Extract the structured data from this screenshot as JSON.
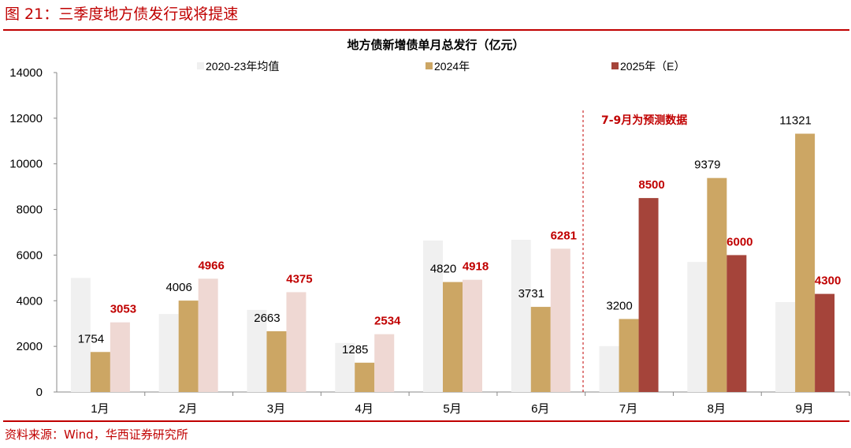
{
  "figure_title": "图 21：三季度地方债发行或将提速",
  "source": "资料来源：Wind，华西证券研究所",
  "colors": {
    "accent": "#c00000",
    "avg": "#f0f0f0",
    "y2024": "#cca664",
    "y2025_actual": "#efd8d3",
    "y2025_forecast": "#a5443a"
  },
  "chart_data": {
    "type": "bar",
    "title": "地方债新增债单月总发行（亿元）",
    "categories": [
      "1月",
      "2月",
      "3月",
      "4月",
      "5月",
      "6月",
      "7月",
      "8月",
      "9月"
    ],
    "series": [
      {
        "name": "2020-23年均值",
        "values": [
          5000,
          3420,
          3600,
          2150,
          6640,
          6670,
          2010,
          5700,
          3940
        ],
        "labeled": false
      },
      {
        "name": "2024年",
        "values": [
          1754,
          4006,
          2663,
          1285,
          4820,
          3731,
          3200,
          9379,
          11321
        ],
        "labeled": true
      },
      {
        "name": "2025年（E）",
        "values": [
          3053,
          4966,
          4375,
          2534,
          4918,
          6281,
          8500,
          6000,
          4300
        ],
        "labeled": true
      }
    ],
    "ylim": [
      0,
      14000
    ],
    "yticks": [
      0,
      2000,
      4000,
      6000,
      8000,
      10000,
      12000,
      14000
    ],
    "grid": false,
    "legend_placement": "top",
    "forecast_start_index": 6,
    "annotation": "7-9月为预测数据"
  }
}
